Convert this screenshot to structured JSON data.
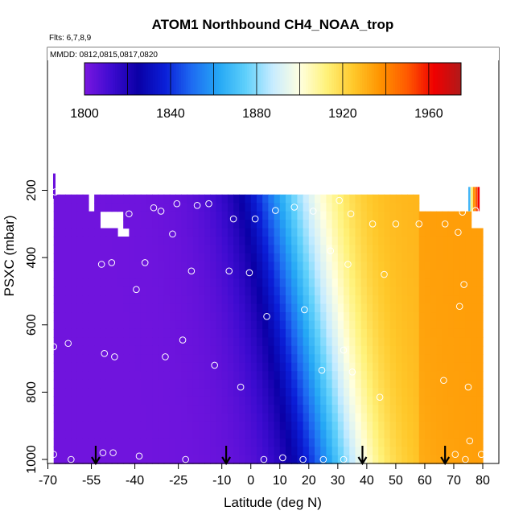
{
  "chart_data": {
    "type": "heatmap",
    "title": "ATOM1 Northbound CH4_NOAA_trop",
    "annotations": [
      "Flts: 6,7,8,9",
      "MMDD: 0812,0815,0817,0820"
    ],
    "xlabel": "Latitude (deg N)",
    "ylabel": "PSXC (mbar)",
    "xlim": [
      -70,
      80
    ],
    "ylim": [
      1000,
      150
    ],
    "x_ticks": [
      -70,
      -55,
      -40,
      -25,
      -10,
      0,
      10,
      20,
      30,
      40,
      50,
      60,
      70,
      80
    ],
    "x_tick_labels": [
      "-70",
      "-55",
      "-40",
      "-25",
      "-10",
      "0",
      "10",
      "20",
      "30",
      "40",
      "50",
      "60",
      "70",
      "80"
    ],
    "y_ticks": [
      200,
      400,
      600,
      800,
      1000
    ],
    "y_tick_labels": [
      "200",
      "400",
      "600",
      "800",
      "1000"
    ],
    "colorbar": {
      "range": [
        1800,
        1975
      ],
      "ticks": [
        1800,
        1840,
        1880,
        1920,
        1960
      ],
      "tick_labels": [
        "1800",
        "1840",
        "1880",
        "1920",
        "1960"
      ],
      "colors": [
        "#7a16e0",
        "#3d0bd0",
        "#0a00a6",
        "#0b1fd8",
        "#1e6cf2",
        "#25a8f5",
        "#5fd0fb",
        "#c8ecff",
        "#ffffe0",
        "#fff27a",
        "#ffc82a",
        "#ff9300",
        "#ff5a00",
        "#f00000",
        "#b01a1a"
      ]
    },
    "field_description": "CH4 mixing ratio increasing from ~1805 ppb south of 40S to ~1915-1925 ppb north of 60N; upper troposphere slightly higher than surface in tropics",
    "sample_points": [
      {
        "lat": -67.5,
        "p": 205
      },
      {
        "lat": -68,
        "p": 665
      },
      {
        "lat": -68,
        "p": 985
      },
      {
        "lat": -63,
        "p": 655
      },
      {
        "lat": -62,
        "p": 1000
      },
      {
        "lat": -51.5,
        "p": 420
      },
      {
        "lat": -48,
        "p": 415
      },
      {
        "lat": -50.5,
        "p": 685
      },
      {
        "lat": -47,
        "p": 695
      },
      {
        "lat": -51,
        "p": 980
      },
      {
        "lat": -47.5,
        "p": 980
      },
      {
        "lat": -42,
        "p": 270
      },
      {
        "lat": -39.5,
        "p": 495
      },
      {
        "lat": -36.5,
        "p": 415
      },
      {
        "lat": -33.5,
        "p": 252
      },
      {
        "lat": -31,
        "p": 262
      },
      {
        "lat": -38.5,
        "p": 990
      },
      {
        "lat": -29.5,
        "p": 695
      },
      {
        "lat": -27,
        "p": 330
      },
      {
        "lat": -25.5,
        "p": 240
      },
      {
        "lat": -23.5,
        "p": 645
      },
      {
        "lat": -22.5,
        "p": 1000
      },
      {
        "lat": -20.5,
        "p": 440
      },
      {
        "lat": -18.5,
        "p": 245
      },
      {
        "lat": -14.5,
        "p": 240
      },
      {
        "lat": -12.5,
        "p": 720
      },
      {
        "lat": -7.5,
        "p": 440
      },
      {
        "lat": -6,
        "p": 285
      },
      {
        "lat": -3.5,
        "p": 785
      },
      {
        "lat": -0.5,
        "p": 445
      },
      {
        "lat": 1.5,
        "p": 285
      },
      {
        "lat": 4.5,
        "p": 1000
      },
      {
        "lat": 5.5,
        "p": 575
      },
      {
        "lat": 8.5,
        "p": 260
      },
      {
        "lat": 11,
        "p": 995
      },
      {
        "lat": 18.5,
        "p": 555
      },
      {
        "lat": 18,
        "p": 1000
      },
      {
        "lat": 15,
        "p": 250
      },
      {
        "lat": 21.5,
        "p": 262
      },
      {
        "lat": 24.5,
        "p": 735
      },
      {
        "lat": 25,
        "p": 1000
      },
      {
        "lat": 27.5,
        "p": 380
      },
      {
        "lat": 30.5,
        "p": 230
      },
      {
        "lat": 32,
        "p": 675
      },
      {
        "lat": 32,
        "p": 1000
      },
      {
        "lat": 33.5,
        "p": 420
      },
      {
        "lat": 34.5,
        "p": 270
      },
      {
        "lat": 35,
        "p": 740
      },
      {
        "lat": 42,
        "p": 300
      },
      {
        "lat": 44.5,
        "p": 815
      },
      {
        "lat": 46,
        "p": 450
      },
      {
        "lat": 50,
        "p": 300
      },
      {
        "lat": 58,
        "p": 300
      },
      {
        "lat": 66.5,
        "p": 765
      },
      {
        "lat": 67,
        "p": 300
      },
      {
        "lat": 70.5,
        "p": 985
      },
      {
        "lat": 71.5,
        "p": 325
      },
      {
        "lat": 72,
        "p": 545
      },
      {
        "lat": 73.5,
        "p": 480
      },
      {
        "lat": 74,
        "p": 1000
      },
      {
        "lat": 75,
        "p": 785
      },
      {
        "lat": 75.5,
        "p": 945
      },
      {
        "lat": 73,
        "p": 265
      },
      {
        "lat": 77.5,
        "p": 260
      },
      {
        "lat": 79.5,
        "p": 985
      }
    ],
    "arrow_markers_lat": [
      -53.5,
      -8.5,
      38.5,
      67
    ]
  }
}
